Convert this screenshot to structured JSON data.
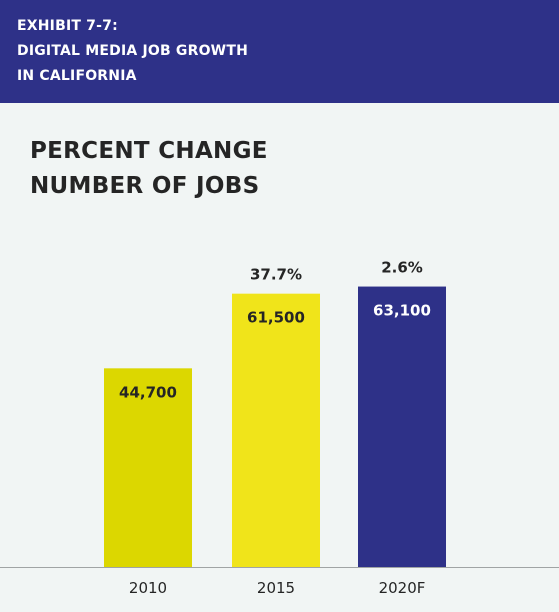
{
  "exhibit": {
    "line1": "EXHIBIT 7-7:",
    "line2": "DIGITAL MEDIA JOB GROWTH",
    "line3": "IN CALIFORNIA"
  },
  "chart_title": {
    "line1": "PERCENT CHANGE",
    "line2": "NUMBER OF JOBS"
  },
  "colors": {
    "header_background": "#2e3188",
    "bar_2010": "#dcd700",
    "bar_2015": "#f0e41a",
    "bar_2020F": "#2e3188"
  },
  "chart_data": {
    "type": "bar",
    "title": "PERCENT CHANGE NUMBER OF JOBS",
    "categories": [
      "2010",
      "2015",
      "2020F"
    ],
    "values": [
      44700,
      61500,
      63100
    ],
    "value_labels": [
      "44,700",
      "61,500",
      "63,100"
    ],
    "percent_change_labels": [
      "",
      "37.7%",
      "2.6%"
    ],
    "ylim": [
      0,
      67500
    ],
    "grid": false,
    "legend": "none",
    "bar_colors": [
      "#dcd700",
      "#f0e41a",
      "#2e3188"
    ],
    "value_label_colors": [
      "#252525",
      "#252525",
      "#ffffff"
    ]
  }
}
